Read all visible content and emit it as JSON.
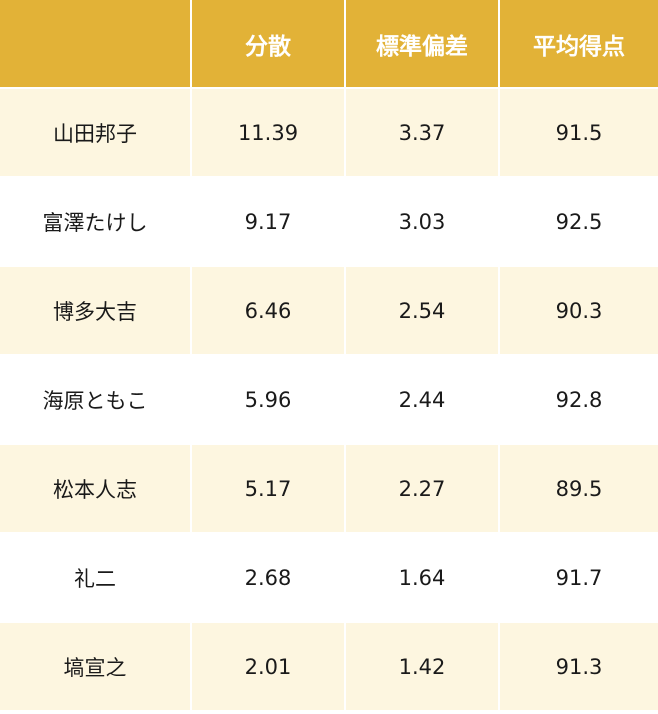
{
  "table": {
    "headers": [
      "",
      "分散",
      "標準偏差",
      "平均得点"
    ],
    "rows": [
      [
        "山田邦子",
        "11.39",
        "3.37",
        "91.5"
      ],
      [
        "富澤たけし",
        "9.17",
        "3.03",
        "92.5"
      ],
      [
        "博多大吉",
        "6.46",
        "2.54",
        "90.3"
      ],
      [
        "海原ともこ",
        "5.96",
        "2.44",
        "92.8"
      ],
      [
        "松本人志",
        "5.17",
        "2.27",
        "89.5"
      ],
      [
        "礼二",
        "2.68",
        "1.64",
        "91.7"
      ],
      [
        "塙宣之",
        "2.01",
        "1.42",
        "91.3"
      ]
    ]
  },
  "colors": {
    "header_bg": "#e2b237",
    "header_text": "#ffffff",
    "row_odd_bg": "#fdf6e0",
    "row_even_bg": "#ffffff"
  }
}
